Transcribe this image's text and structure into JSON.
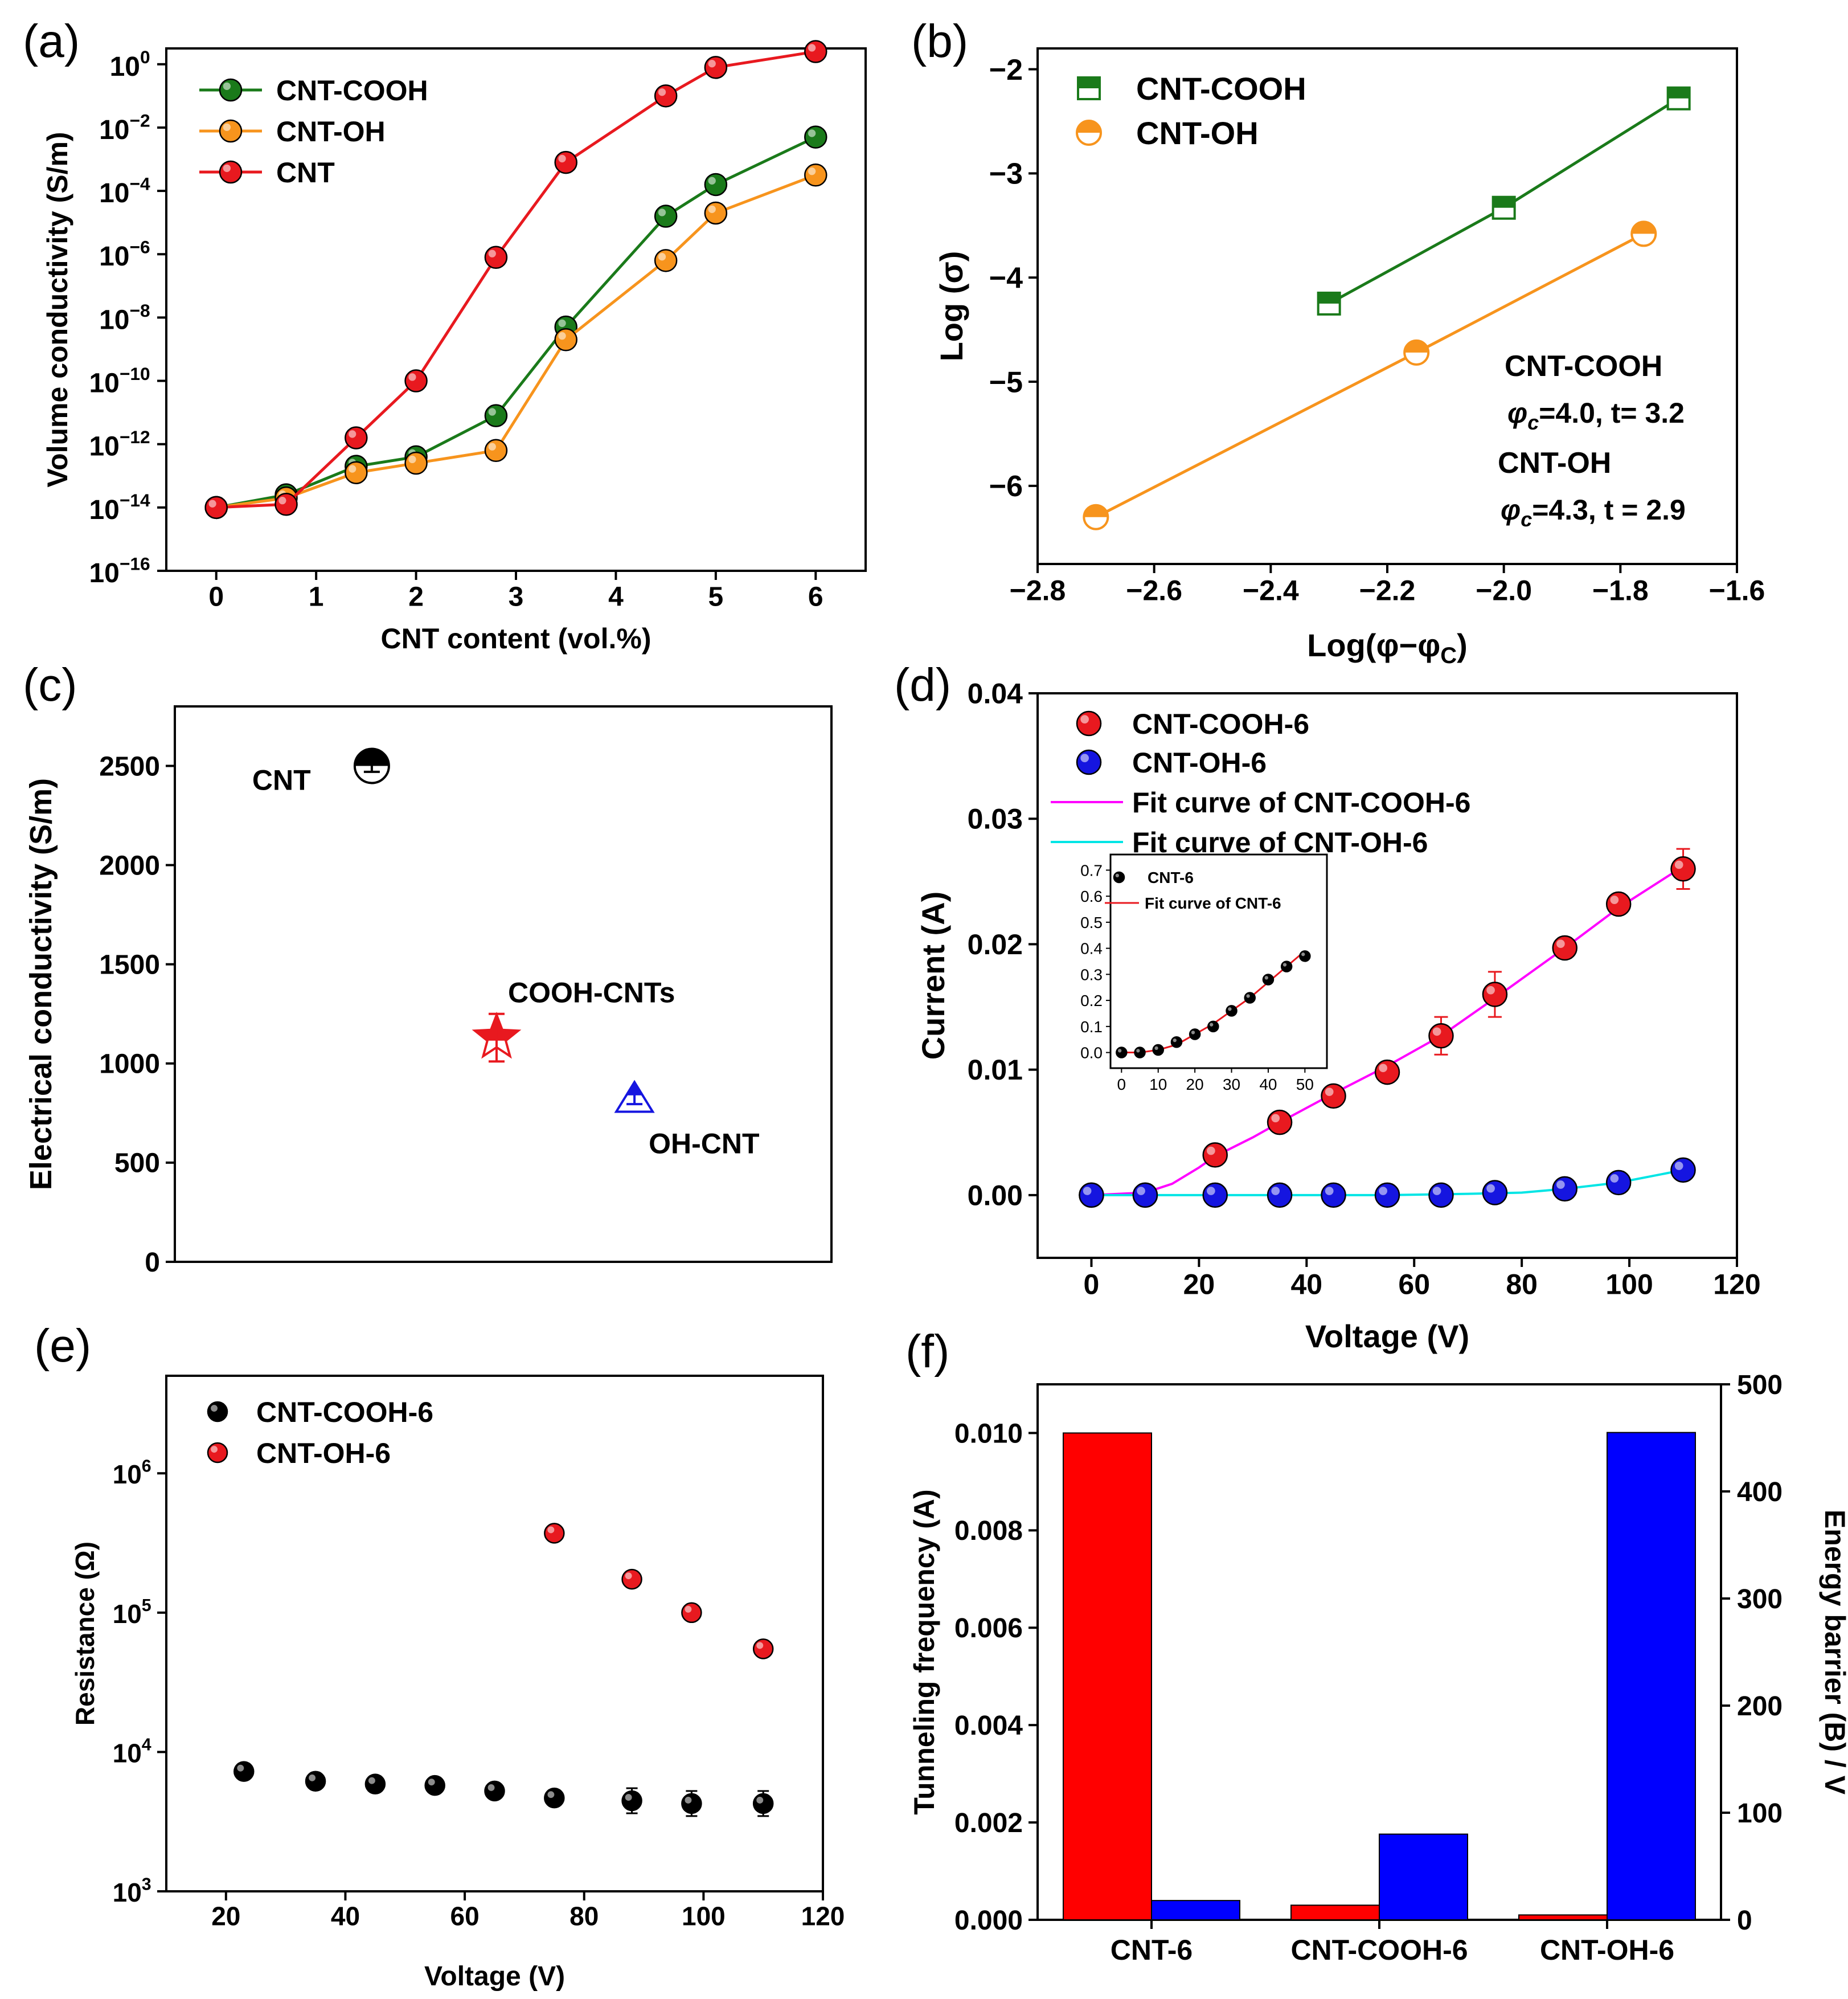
{
  "figure": {
    "panel_letters": [
      "(a)",
      "(b)",
      "(c)",
      "(d)",
      "(e)",
      "(f)"
    ]
  },
  "chart_data": [
    {
      "panel": "(a)",
      "type": "line",
      "xlabel": "CNT content (vol.%)",
      "ylabel": "Volume conductivity (S/m)",
      "yscale": "log",
      "xlim": [
        -0.5,
        6.5
      ],
      "xticks": [
        0,
        1,
        2,
        3,
        4,
        5,
        6
      ],
      "ylim_exp": [
        -16,
        0.5
      ],
      "yticks_exp": [
        -16,
        -14,
        -12,
        -10,
        -8,
        -6,
        -4,
        -2,
        0
      ],
      "legend_position": "top-left",
      "series": [
        {
          "name": "CNT-COOH",
          "color": "#1a7a1a",
          "x": [
            0,
            0.7,
            1.4,
            2,
            2.8,
            3.5,
            4.5,
            5,
            6
          ],
          "log10_y": [
            -14,
            -13.6,
            -12.7,
            -12.4,
            -11.1,
            -8.3,
            -4.8,
            -3.8,
            -2.3
          ]
        },
        {
          "name": "CNT-OH",
          "color": "#f7941d",
          "x": [
            0,
            0.7,
            1.4,
            2,
            2.8,
            3.5,
            4.5,
            5,
            6
          ],
          "log10_y": [
            -14,
            -13.7,
            -12.9,
            -12.6,
            -12.2,
            -8.7,
            -6.2,
            -4.7,
            -3.5
          ]
        },
        {
          "name": "CNT",
          "color": "#e8191f",
          "x": [
            0,
            0.7,
            1.4,
            2,
            2.8,
            3.5,
            4.5,
            5,
            6
          ],
          "log10_y": [
            -14,
            -13.9,
            -11.8,
            -10,
            -6.1,
            -3.1,
            -1,
            -0.1,
            0.4
          ]
        }
      ]
    },
    {
      "panel": "(b)",
      "type": "scatter",
      "xlabel": "Log(φ−φc)",
      "ylabel": "Log (σ)",
      "xlim": [
        -2.8,
        -1.6
      ],
      "xticks": [
        -2.8,
        -2.6,
        -2.4,
        -2.2,
        -2.0,
        -1.8,
        -1.6
      ],
      "xtick_labels": [
        "−2.8",
        "−2.6",
        "−2.4",
        "−2.2",
        "−2.0",
        "−1.8",
        "−1.6"
      ],
      "ylim": [
        -6.75,
        -1.8
      ],
      "yticks": [
        -6,
        -5,
        -4,
        -3,
        -2
      ],
      "ytick_labels": [
        "−6",
        "−5",
        "−4",
        "−3",
        "−2"
      ],
      "legend_position": "top-left",
      "series": [
        {
          "name": "CNT-COOH",
          "color": "#1a7a1a",
          "x": [
            -2.3,
            -2.0,
            -1.7
          ],
          "y": [
            -4.25,
            -3.33,
            -2.28
          ]
        },
        {
          "name": "CNT-OH",
          "color": "#f7941d",
          "x": [
            -2.7,
            -2.15,
            -1.76
          ],
          "y": [
            -6.3,
            -4.72,
            -3.58
          ]
        }
      ],
      "annotations": [
        {
          "title": "CNT-COOH",
          "param": "=4.0, t= 3.2"
        },
        {
          "title": "CNT-OH",
          "param": "=4.3, t = 2.9"
        }
      ],
      "phi_symbol": "φ",
      "phi_subscript": "c"
    },
    {
      "panel": "(c)",
      "type": "scatter",
      "ylabel": "Electrical conductivity (S/m)",
      "xlim": [
        0,
        1
      ],
      "ylim": [
        0,
        2800
      ],
      "yticks": [
        0,
        500,
        1000,
        1500,
        2000,
        2500
      ],
      "points": [
        {
          "label": "CNT",
          "x": 0.3,
          "y": 2500,
          "err": 30,
          "color": "#000000",
          "marker": "half-circle"
        },
        {
          "label": "COOH-CNTs",
          "x": 0.49,
          "y": 1130,
          "err": 120,
          "color": "#e8191f",
          "marker": "star"
        },
        {
          "label": "OH-CNT",
          "x": 0.7,
          "y": 820,
          "err": 25,
          "color": "#1515e0",
          "marker": "triangle"
        }
      ]
    },
    {
      "panel": "(d)",
      "type": "scatter",
      "xlabel": "Voltage (V)",
      "ylabel": "Current (A)",
      "xlim": [
        -10,
        120
      ],
      "xticks": [
        0,
        20,
        40,
        60,
        80,
        100,
        120
      ],
      "ylim": [
        -0.005,
        0.04
      ],
      "yticks": [
        0.0,
        0.01,
        0.02,
        0.03,
        0.04
      ],
      "ytick_labels": [
        "0.00",
        "0.01",
        "0.02",
        "0.03",
        "0.04"
      ],
      "legend_position": "top-left",
      "series": [
        {
          "name": "CNT-COOH-6",
          "color": "#e8191f",
          "x": [
            0,
            10,
            23,
            35,
            45,
            55,
            65,
            75,
            88,
            98,
            110
          ],
          "y": [
            0,
            0,
            0.0032,
            0.0058,
            0.0079,
            0.0098,
            0.0127,
            0.016,
            0.0197,
            0.0232,
            0.026
          ],
          "err": [
            0,
            0,
            0.0003,
            0.0005,
            0.0005,
            0.0007,
            0.0015,
            0.0018,
            0.0008,
            0.0007,
            0.0016
          ]
        },
        {
          "name": "CNT-OH-6",
          "color": "#1515e0",
          "x": [
            0,
            10,
            23,
            35,
            45,
            55,
            65,
            75,
            88,
            98,
            110
          ],
          "y": [
            0,
            0,
            0,
            0,
            0,
            0,
            0,
            0.0002,
            0.0005,
            0.001,
            0.002
          ],
          "err": [
            0,
            0,
            0,
            0,
            0,
            0,
            0,
            0,
            0,
            0,
            0
          ]
        }
      ],
      "fits": [
        {
          "name": "Fit curve of CNT-COOH-6",
          "color": "#ff00ff",
          "x": [
            0,
            10,
            15,
            20,
            23,
            30,
            35,
            45,
            55,
            65,
            75,
            88,
            98,
            110
          ],
          "y": [
            0,
            0.0002,
            0.0009,
            0.0022,
            0.0031,
            0.0046,
            0.0058,
            0.0081,
            0.0103,
            0.0127,
            0.0157,
            0.0197,
            0.0229,
            0.0262
          ]
        },
        {
          "name": "Fit curve of CNT-OH-6",
          "color": "#00e5e5",
          "x": [
            0,
            55,
            70,
            80,
            88,
            98,
            110
          ],
          "y": [
            0,
            0,
            0.0001,
            0.0002,
            0.0005,
            0.001,
            0.002
          ]
        }
      ],
      "inset": {
        "xlim": [
          -3,
          56
        ],
        "xticks": [
          0,
          10,
          20,
          30,
          40,
          50
        ],
        "ylim": [
          -0.06,
          0.76
        ],
        "yticks": [
          0.0,
          0.1,
          0.2,
          0.3,
          0.4,
          0.5,
          0.6,
          0.7
        ],
        "ytick_labels": [
          "0.0",
          "0.1",
          "0.2",
          "0.3",
          "0.4",
          "0.5",
          "0.6",
          "0.7"
        ],
        "series": {
          "name": "CNT-6",
          "color": "#000000",
          "x": [
            0,
            5,
            10,
            15,
            20,
            25,
            30,
            35,
            40,
            45,
            50
          ],
          "y": [
            0,
            0,
            0.01,
            0.04,
            0.07,
            0.1,
            0.16,
            0.21,
            0.28,
            0.33,
            0.37
          ]
        },
        "fit": {
          "name": "Fit curve of CNT-6",
          "color": "#e8191f",
          "x": [
            0,
            5,
            10,
            15,
            20,
            25,
            30,
            35,
            40,
            45,
            50
          ],
          "y": [
            0,
            0,
            0.01,
            0.03,
            0.07,
            0.11,
            0.16,
            0.21,
            0.27,
            0.33,
            0.39
          ]
        }
      }
    },
    {
      "panel": "(e)",
      "type": "scatter",
      "xlabel": "Voltage (V)",
      "ylabel": "Resistance (Ω)",
      "yscale": "log",
      "xlim": [
        10,
        120
      ],
      "xticks": [
        20,
        40,
        60,
        80,
        100,
        120
      ],
      "ylim_exp": [
        3,
        6.7
      ],
      "yticks_exp": [
        3,
        4,
        5,
        6
      ],
      "legend_position": "top-left",
      "series": [
        {
          "name": "CNT-COOH-6",
          "color": "#000000",
          "x": [
            23,
            35,
            45,
            55,
            65,
            75,
            88,
            98,
            110
          ],
          "log10_y": [
            3.86,
            3.79,
            3.77,
            3.76,
            3.72,
            3.67,
            3.65,
            3.63,
            3.63
          ]
        },
        {
          "name": "CNT-OH-6",
          "color": "#e8191f",
          "x": [
            75,
            88,
            98,
            110
          ],
          "log10_y": [
            5.57,
            5.24,
            5.0,
            4.74
          ]
        }
      ]
    },
    {
      "panel": "(f)",
      "type": "bar",
      "categories": [
        "CNT-6",
        "CNT-COOH-6",
        "CNT-OH-6"
      ],
      "ylabel": "Tunneling frequency (A)",
      "y2label": "Energy barrier (B) / V",
      "ylim": [
        0,
        0.011
      ],
      "yticks": [
        0.0,
        0.002,
        0.004,
        0.006,
        0.008,
        0.01
      ],
      "ytick_labels": [
        "0.000",
        "0.002",
        "0.004",
        "0.006",
        "0.008",
        "0.010"
      ],
      "y2lim": [
        0,
        500
      ],
      "y2ticks": [
        0,
        100,
        200,
        300,
        400,
        500
      ],
      "series": [
        {
          "name": "Tunneling frequency (A)",
          "color": "#ff0000",
          "axis": "left",
          "values": [
            0.01,
            0.0003,
            0.0001
          ]
        },
        {
          "name": "Energy barrier (B) / V",
          "color": "#0000ff",
          "axis": "right",
          "values": [
            18,
            80,
            455
          ]
        }
      ]
    }
  ]
}
